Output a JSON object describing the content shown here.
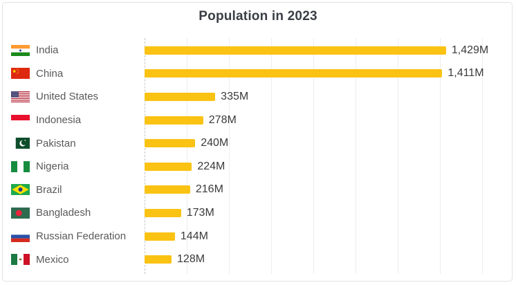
{
  "title": "Population in 2023",
  "chart_data": {
    "type": "bar",
    "orientation": "horizontal",
    "title": "Population in 2023",
    "categories": [
      "India",
      "China",
      "United States",
      "Indonesia",
      "Pakistan",
      "Nigeria",
      "Brazil",
      "Bangladesh",
      "Russian Federation",
      "Mexico"
    ],
    "values": [
      1429,
      1411,
      335,
      278,
      240,
      224,
      216,
      173,
      144,
      128
    ],
    "value_labels": [
      "1,429M",
      "1,411M",
      "335M",
      "278M",
      "240M",
      "224M",
      "216M",
      "173M",
      "144M",
      "128M"
    ],
    "unit": "M",
    "xlim": [
      0,
      1600
    ],
    "gridline_step": 200,
    "grid": "vertical light gridlines with dashed zero axis, no tick labels",
    "legend_position": "none",
    "bar_color": "#FAC213"
  },
  "rows": [
    {
      "label": "India",
      "value_label": "1,429M",
      "flag_icon": "flag-india-icon"
    },
    {
      "label": "China",
      "value_label": "1,411M",
      "flag_icon": "flag-china-icon"
    },
    {
      "label": "United States",
      "value_label": "335M",
      "flag_icon": "flag-united-states-icon"
    },
    {
      "label": "Indonesia",
      "value_label": "278M",
      "flag_icon": "flag-indonesia-icon"
    },
    {
      "label": "Pakistan",
      "value_label": "240M",
      "flag_icon": "flag-pakistan-icon"
    },
    {
      "label": "Nigeria",
      "value_label": "224M",
      "flag_icon": "flag-nigeria-icon"
    },
    {
      "label": "Brazil",
      "value_label": "216M",
      "flag_icon": "flag-brazil-icon"
    },
    {
      "label": "Bangladesh",
      "value_label": "173M",
      "flag_icon": "flag-bangladesh-icon"
    },
    {
      "label": "Russian Federation",
      "value_label": "144M",
      "flag_icon": "flag-russia-icon"
    },
    {
      "label": "Mexico",
      "value_label": "128M",
      "flag_icon": "flag-mexico-icon"
    }
  ],
  "colors": {
    "bar": "#FAC213",
    "title_text": "#3A3E44",
    "country_label_text": "#595959",
    "value_label_text": "#3A3A3A",
    "gridline": "#EDEDED",
    "axis_dashed": "#C6C6C6",
    "card_border": "#E2E2E2",
    "background": "#FFFFFF"
  }
}
